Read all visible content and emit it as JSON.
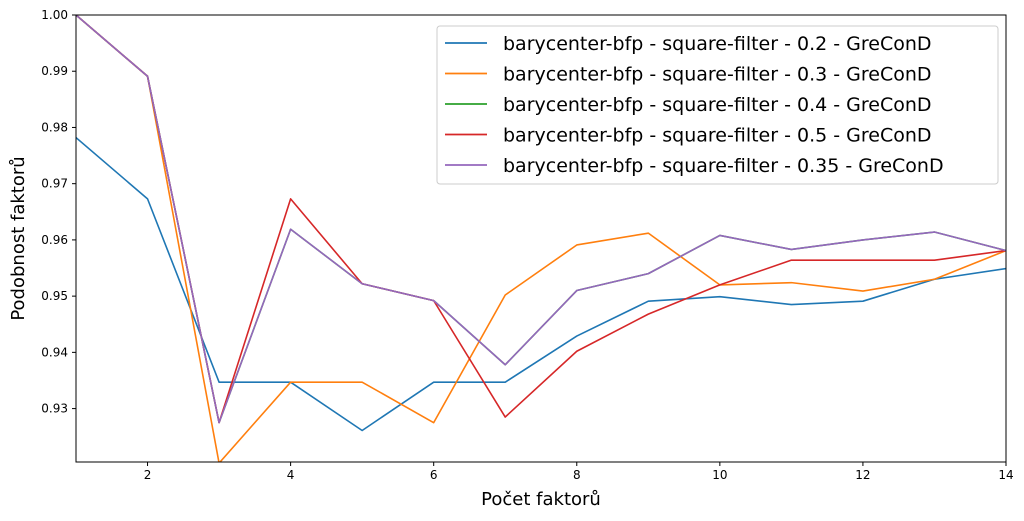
{
  "chart_data": {
    "type": "line",
    "xlabel": "Počet faktorů",
    "ylabel": "Podobnost faktorů",
    "xlim": [
      1,
      14
    ],
    "ylim": [
      0.9205,
      1.0
    ],
    "xticks": [
      2,
      4,
      6,
      8,
      10,
      12,
      14
    ],
    "xtick_labels": [
      "2",
      "4",
      "6",
      "8",
      "10",
      "12",
      "14"
    ],
    "yticks": [
      0.93,
      0.94,
      0.95,
      0.96,
      0.97,
      0.98,
      0.99,
      1.0
    ],
    "ytick_labels": [
      "0.93",
      "0.94",
      "0.95",
      "0.96",
      "0.97",
      "0.98",
      "0.99",
      "1.00"
    ],
    "grid": false,
    "legend_position": "top-right",
    "x": [
      1,
      2,
      3,
      4,
      5,
      6,
      7,
      8,
      9,
      10,
      11,
      12,
      13,
      14
    ],
    "series": [
      {
        "name": "barycenter-bfp - square-filter - 0.2 - GreConD",
        "color": "#1f77b4",
        "values": [
          0.9782,
          0.9673,
          0.9347,
          0.9347,
          0.9261,
          0.9347,
          0.9347,
          0.9429,
          0.9491,
          0.9499,
          0.9485,
          0.9491,
          0.953,
          0.9549
        ]
      },
      {
        "name": "barycenter-bfp - square-filter - 0.3 - GreConD",
        "color": "#ff7f0e",
        "values": [
          1.0,
          0.9891,
          0.9203,
          0.9347,
          0.9347,
          0.9275,
          0.9502,
          0.9591,
          0.9612,
          0.952,
          0.9524,
          0.9509,
          0.953,
          0.9581
        ]
      },
      {
        "name": "barycenter-bfp - square-filter - 0.4 - GreConD",
        "color": "#2ca02c",
        "values": [
          1.0,
          0.9891,
          0.9275,
          0.9619,
          0.9522,
          0.9492,
          0.9378,
          0.951,
          0.954,
          0.9608,
          0.9583,
          0.96,
          0.9614,
          0.9581
        ]
      },
      {
        "name": "barycenter-bfp - square-filter - 0.5 - GreConD",
        "color": "#d62728",
        "values": [
          1.0,
          0.9891,
          0.9275,
          0.9673,
          0.9522,
          0.9492,
          0.9285,
          0.9402,
          0.9468,
          0.952,
          0.9564,
          0.9564,
          0.9564,
          0.9581
        ]
      },
      {
        "name": "barycenter-bfp - square-filter - 0.35 - GreConD",
        "color": "#9467bd",
        "values": [
          1.0,
          0.9891,
          0.9275,
          0.9619,
          0.9522,
          0.9492,
          0.9378,
          0.951,
          0.954,
          0.9608,
          0.9583,
          0.96,
          0.9614,
          0.9581
        ]
      }
    ]
  }
}
